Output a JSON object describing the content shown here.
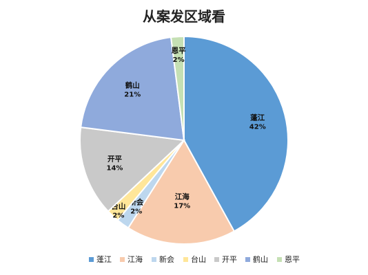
{
  "chart_data": {
    "type": "pie",
    "title": "从案发区域看",
    "categories": [
      "蓬江",
      "江海",
      "新会",
      "台山",
      "开平",
      "鹤山",
      "恩平"
    ],
    "values": [
      42,
      17,
      2,
      2,
      14,
      21,
      2
    ],
    "value_labels": [
      "42%",
      "17%",
      "2%",
      "2%",
      "14%",
      "21%",
      "2%"
    ],
    "colors": [
      "#5b9bd5",
      "#f8cbad",
      "#bdd7ee",
      "#ffe699",
      "#c9c9c9",
      "#8faadc",
      "#c5e0b4"
    ],
    "legend_position": "bottom",
    "start_angle_deg": 0,
    "direction": "clockwise"
  }
}
